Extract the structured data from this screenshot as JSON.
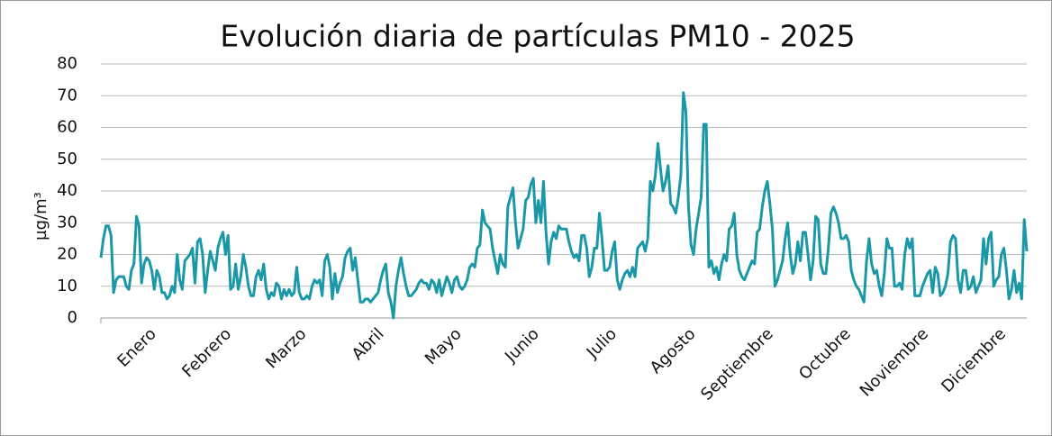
{
  "chart_data": {
    "type": "line",
    "title": "Evolución diaria de partículas PM10 - 2025",
    "y_label": "µg/m³",
    "ylim": [
      0,
      80
    ],
    "yticks": [
      0,
      10,
      20,
      30,
      40,
      50,
      60,
      70,
      80
    ],
    "grid": true,
    "categories": [
      "Enero",
      null,
      null,
      null,
      null,
      null,
      null,
      null,
      null,
      null,
      null,
      null,
      null,
      null,
      null,
      null,
      null,
      null,
      null,
      null,
      null,
      null,
      null,
      null,
      null,
      null,
      null,
      null,
      null,
      null,
      null,
      "Febrero",
      null,
      null,
      null,
      null,
      null,
      null,
      null,
      null,
      null,
      null,
      null,
      null,
      null,
      null,
      null,
      null,
      null,
      null,
      null,
      null,
      null,
      null,
      null,
      null,
      null,
      null,
      null,
      "Marzo",
      null,
      null,
      null,
      null,
      null,
      null,
      null,
      null,
      null,
      null,
      null,
      null,
      null,
      null,
      null,
      null,
      null,
      null,
      null,
      null,
      null,
      null,
      null,
      null,
      null,
      null,
      null,
      null,
      null,
      null,
      "Abril",
      null,
      null,
      null,
      null,
      null,
      null,
      null,
      null,
      null,
      null,
      null,
      null,
      null,
      null,
      null,
      null,
      null,
      null,
      null,
      null,
      null,
      null,
      null,
      null,
      null,
      null,
      null,
      null,
      null,
      "Mayo",
      null,
      null,
      null,
      null,
      null,
      null,
      null,
      null,
      null,
      null,
      null,
      null,
      null,
      null,
      null,
      null,
      null,
      null,
      null,
      null,
      null,
      null,
      null,
      null,
      null,
      null,
      null,
      null,
      null,
      null,
      "Junio",
      null,
      null,
      null,
      null,
      null,
      null,
      null,
      null,
      null,
      null,
      null,
      null,
      null,
      null,
      null,
      null,
      null,
      null,
      null,
      null,
      null,
      null,
      null,
      null,
      null,
      null,
      null,
      null,
      null,
      "Julio",
      null,
      null,
      null,
      null,
      null,
      null,
      null,
      null,
      null,
      null,
      null,
      null,
      null,
      null,
      null,
      null,
      null,
      null,
      null,
      null,
      null,
      null,
      null,
      null,
      null,
      null,
      null,
      null,
      null,
      null,
      "Agosto",
      null,
      null,
      null,
      null,
      null,
      null,
      null,
      null,
      null,
      null,
      null,
      null,
      null,
      null,
      null,
      null,
      null,
      null,
      null,
      null,
      null,
      null,
      null,
      null,
      null,
      null,
      null,
      null,
      null,
      null,
      "Septiembre",
      null,
      null,
      null,
      null,
      null,
      null,
      null,
      null,
      null,
      null,
      null,
      null,
      null,
      null,
      null,
      null,
      null,
      null,
      null,
      null,
      null,
      null,
      null,
      null,
      null,
      null,
      null,
      null,
      null,
      "Octubre",
      null,
      null,
      null,
      null,
      null,
      null,
      null,
      null,
      null,
      null,
      null,
      null,
      null,
      null,
      null,
      null,
      null,
      null,
      null,
      null,
      null,
      null,
      null,
      null,
      null,
      null,
      null,
      null,
      null,
      null,
      "Noviembre",
      null,
      null,
      null,
      null,
      null,
      null,
      null,
      null,
      null,
      null,
      null,
      null,
      null,
      null,
      null,
      null,
      null,
      null,
      null,
      null,
      null,
      null,
      null,
      null,
      null,
      null,
      null,
      null,
      null,
      "Diciembre",
      null,
      null,
      null,
      null,
      null,
      null,
      null,
      null,
      null,
      null,
      null,
      null,
      null,
      null,
      null,
      null,
      null,
      null,
      null,
      null,
      null,
      null,
      null,
      null,
      null,
      null,
      null,
      null,
      null,
      null
    ],
    "series": [
      {
        "color": "#1a98a8",
        "values": [
          19,
          25,
          29,
          29,
          26,
          8,
          12,
          13,
          13,
          13,
          10,
          9,
          15,
          17,
          32,
          29,
          11,
          17,
          19,
          18,
          15,
          9,
          15,
          13,
          8,
          8,
          6,
          7,
          10,
          8,
          20,
          12,
          9,
          18,
          19,
          20,
          22,
          11,
          24,
          25,
          20,
          8,
          15,
          21,
          18,
          15,
          22,
          25,
          27,
          20,
          26,
          9,
          10,
          17,
          9,
          13,
          20,
          16,
          10,
          7,
          7,
          13,
          15,
          12,
          17,
          9,
          6,
          8,
          7,
          11,
          10,
          6,
          9,
          7,
          9,
          7,
          8,
          16,
          8,
          6,
          6,
          7,
          6,
          10,
          12,
          11,
          12,
          7,
          18,
          20,
          16,
          6,
          14,
          8,
          11,
          13,
          19,
          21,
          22,
          15,
          19,
          12,
          5,
          5,
          6,
          6,
          5,
          6,
          7,
          8,
          12,
          15,
          17,
          8,
          5,
          0,
          10,
          15,
          19,
          14,
          10,
          7,
          7,
          8,
          9,
          11,
          12,
          11,
          11,
          9,
          12,
          11,
          8,
          12,
          7,
          10,
          13,
          11,
          8,
          12,
          13,
          10,
          9,
          10,
          12,
          16,
          17,
          16,
          22,
          23,
          34,
          30,
          29,
          28,
          22,
          18,
          14,
          20,
          17,
          16,
          35,
          38,
          41,
          30,
          22,
          25,
          28,
          37,
          38,
          42,
          44,
          30,
          37,
          30,
          43,
          27,
          17,
          24,
          27,
          25,
          29,
          28,
          28,
          28,
          24,
          21,
          19,
          20,
          18,
          26,
          26,
          22,
          13,
          16,
          22,
          22,
          33,
          25,
          15,
          15,
          16,
          21,
          24,
          12,
          9,
          12,
          14,
          15,
          13,
          16,
          13,
          22,
          23,
          24,
          21,
          25,
          43,
          40,
          45,
          55,
          47,
          40,
          43,
          48,
          36,
          35,
          33,
          38,
          45,
          71,
          65,
          35,
          23,
          20,
          28,
          33,
          38,
          61,
          61,
          16,
          18,
          14,
          16,
          12,
          17,
          20,
          18,
          28,
          29,
          33,
          20,
          15,
          13,
          12,
          14,
          16,
          18,
          17,
          27,
          28,
          35,
          40,
          43,
          36,
          28,
          10,
          12,
          15,
          18,
          25,
          30,
          20,
          14,
          17,
          24,
          18,
          27,
          27,
          20,
          12,
          18,
          32,
          31,
          17,
          14,
          14,
          22,
          33,
          35,
          33,
          30,
          25,
          25,
          26,
          24,
          15,
          12,
          10,
          9,
          7,
          5,
          18,
          25,
          17,
          14,
          15,
          10,
          7,
          14,
          25,
          22,
          22,
          10,
          10,
          11,
          9,
          20,
          25,
          22,
          25,
          7,
          7,
          7,
          10,
          12,
          14,
          15,
          8,
          16,
          14,
          7,
          8,
          10,
          14,
          24,
          26,
          25,
          12,
          8,
          15,
          15,
          9,
          10,
          13,
          8,
          10,
          12,
          25,
          17,
          25,
          27,
          10,
          12,
          13,
          20,
          22,
          15,
          6,
          9,
          15,
          8,
          11,
          6,
          31,
          21
        ]
      }
    ]
  }
}
